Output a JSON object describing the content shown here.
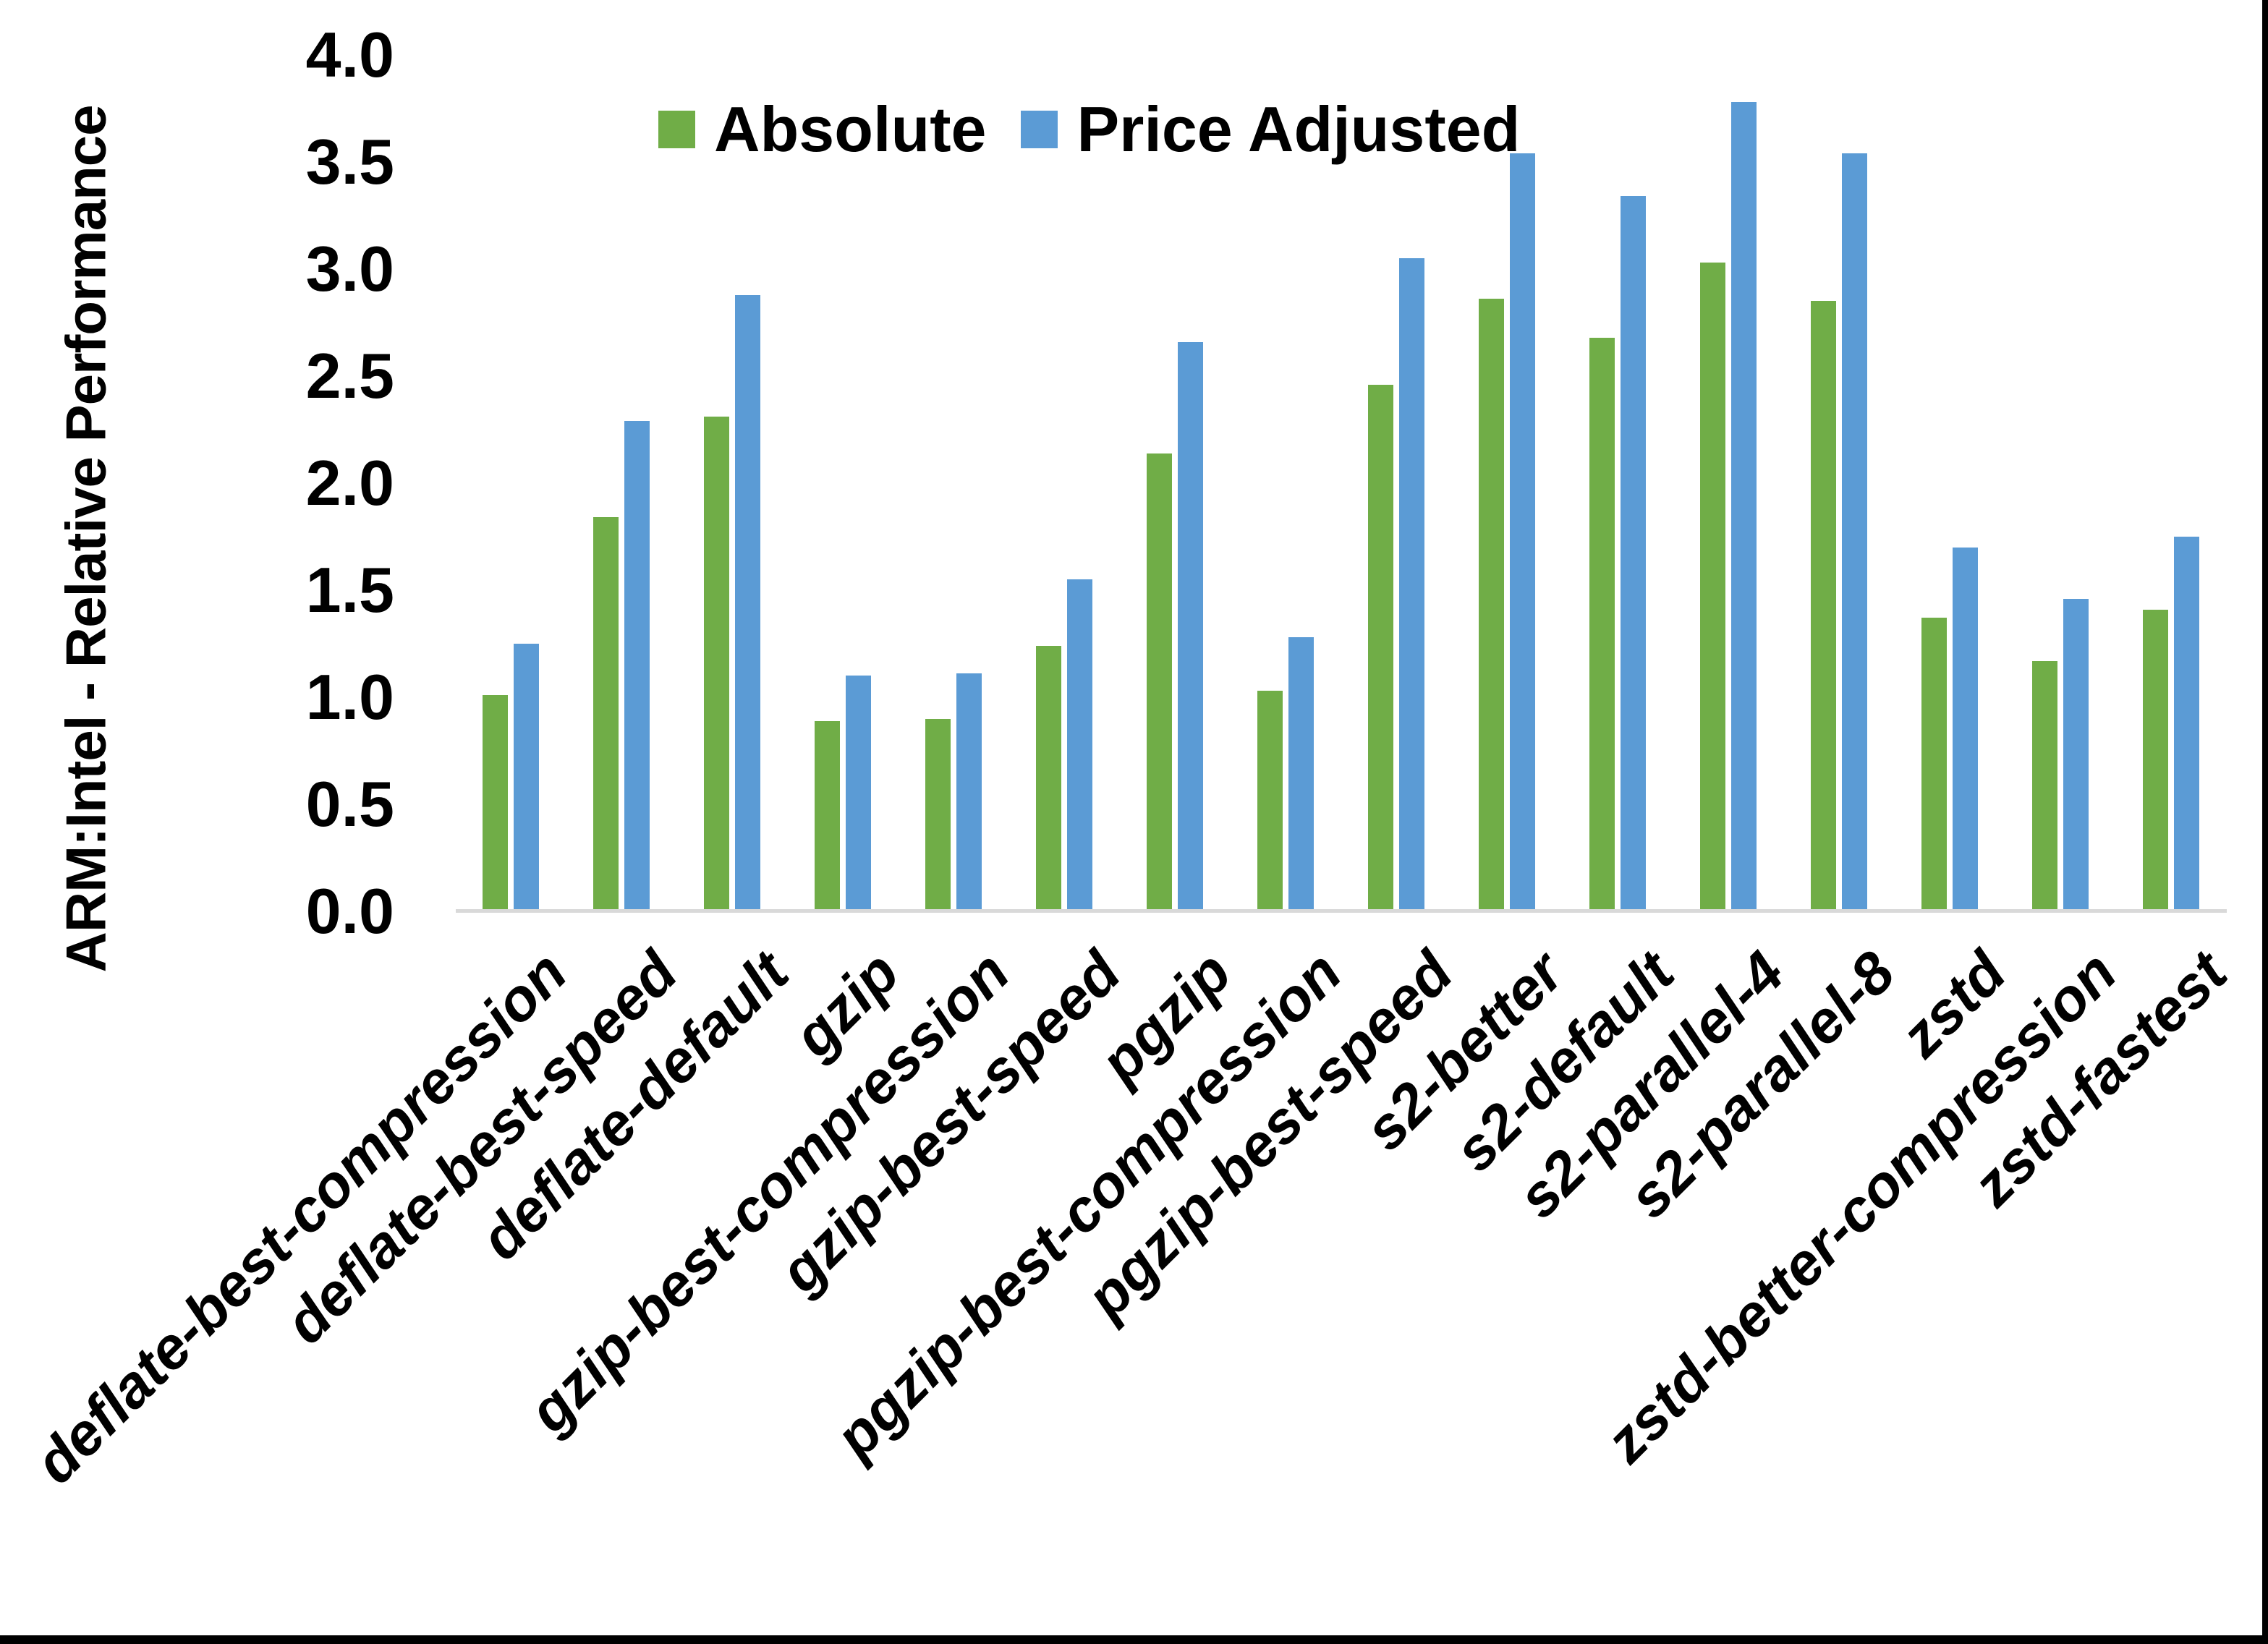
{
  "chart_data": {
    "type": "bar",
    "title": "",
    "ylabel": "ARM:Intel - Relative Performance",
    "xlabel": "",
    "ylim": [
      0.0,
      4.0
    ],
    "ytick_step": 0.5,
    "ytick_labels": [
      "0.0",
      "0.5",
      "1.0",
      "1.5",
      "2.0",
      "2.5",
      "3.0",
      "3.5",
      "4.0"
    ],
    "grid": false,
    "legend_position": "top-center",
    "categories": [
      "deflate-best-compression",
      "deflate-best-speed",
      "deflate-default",
      "gzip",
      "gzip-best-compression",
      "gzip-best-speed",
      "pgzip",
      "pgzip-best-compression",
      "pgzip-best-speed",
      "s2-better",
      "s2-default",
      "s2-parallel-4",
      "s2-parallel-8",
      "zstd",
      "zstd-better-compression",
      "zstd-fastest"
    ],
    "series": [
      {
        "name": "Absolute",
        "color": "#70AD47",
        "values": [
          1.01,
          1.84,
          2.31,
          0.89,
          0.9,
          1.24,
          2.14,
          1.03,
          2.46,
          2.86,
          2.68,
          3.03,
          2.85,
          1.37,
          1.17,
          1.41
        ]
      },
      {
        "name": "Price Adjusted",
        "color": "#5B9BD5",
        "values": [
          1.25,
          2.29,
          2.88,
          1.1,
          1.11,
          1.55,
          2.66,
          1.28,
          3.05,
          3.54,
          3.34,
          3.78,
          3.54,
          1.7,
          1.46,
          1.75
        ]
      }
    ],
    "colors": {
      "axis_line": "#D9D9D9",
      "text": "#000000",
      "frame_border": "#000000",
      "background": "#FFFFFF"
    }
  }
}
